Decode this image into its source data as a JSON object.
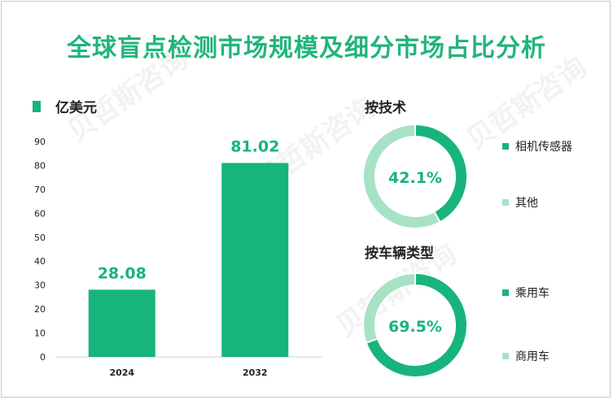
{
  "title": "全球盲点检测市场规模及细分市场占比分析",
  "colors": {
    "primary": "#17b47b",
    "secondary": "#a8e2c4",
    "title": "#21b57a"
  },
  "watermark": "贝哲斯咨询",
  "chart_data": [
    {
      "type": "bar",
      "legend": "亿美元",
      "categories": [
        "2024",
        "2032"
      ],
      "values": [
        28.08,
        81.02
      ],
      "value_labels": [
        "28.08",
        "81.02"
      ],
      "ylim": [
        0,
        90
      ],
      "yticks": [
        0,
        10,
        20,
        30,
        40,
        50,
        60,
        70,
        80,
        90
      ]
    },
    {
      "type": "pie",
      "title": "按技术",
      "center_label": "42.1%",
      "slices": [
        {
          "name": "相机传感器",
          "value": 42.1
        },
        {
          "name": "其他",
          "value": 57.9
        }
      ]
    },
    {
      "type": "pie",
      "title": "按车辆类型",
      "center_label": "69.5%",
      "slices": [
        {
          "name": "乘用车",
          "value": 69.5
        },
        {
          "name": "商用车",
          "value": 30.5
        }
      ]
    }
  ]
}
